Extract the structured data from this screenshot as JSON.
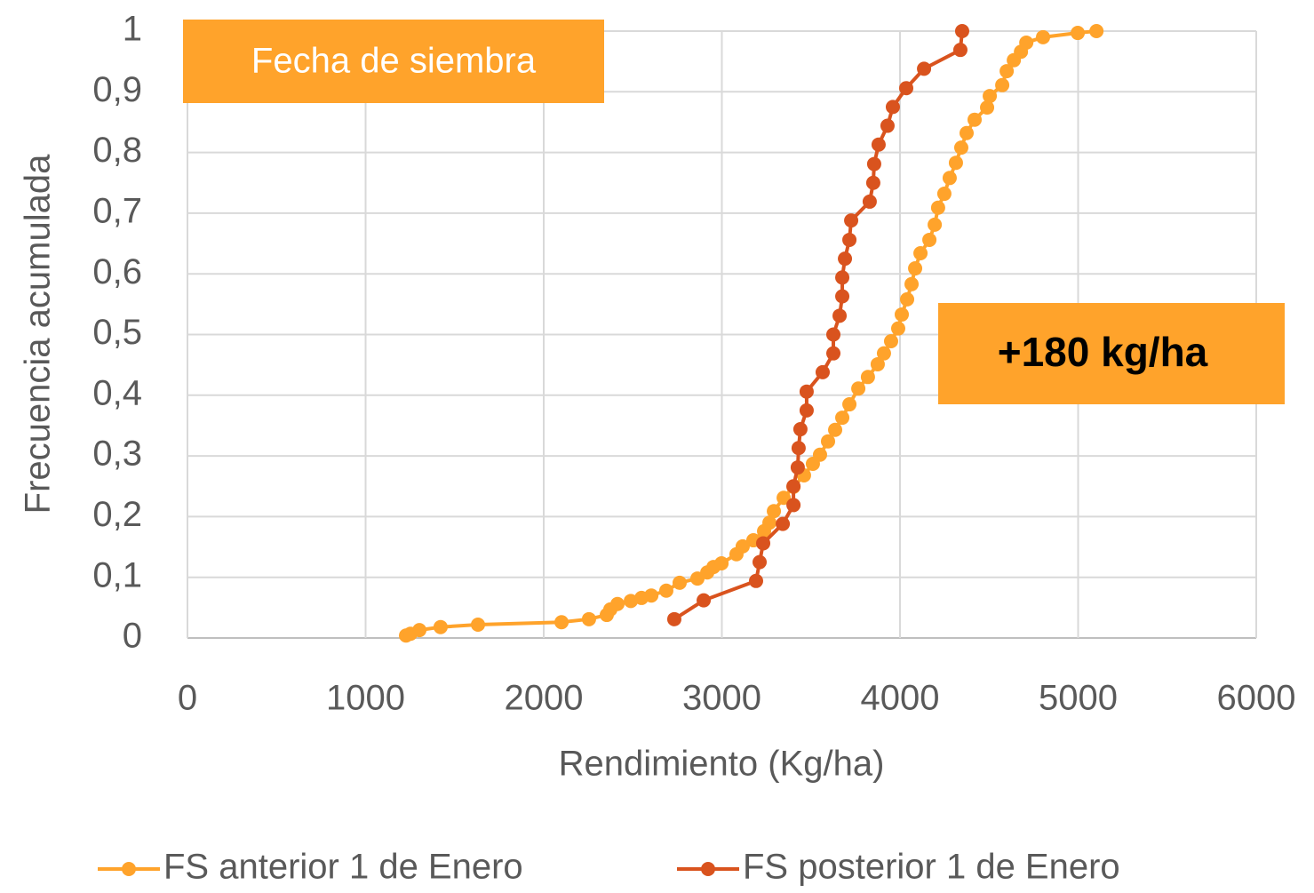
{
  "chart_data": {
    "type": "line",
    "x_label": "Rendimiento (Kg/ha)",
    "y_label": "Frecuencia acumulada",
    "xlim": [
      0,
      6000
    ],
    "xticks": [
      0,
      1000,
      2000,
      3000,
      4000,
      5000,
      6000
    ],
    "ylim": [
      0,
      1
    ],
    "yticks": [
      0,
      {
        "value": 0.1,
        "label": "0,1"
      },
      {
        "value": 0.2,
        "label": "0,2"
      },
      {
        "value": 0.3,
        "label": "0,3"
      },
      {
        "value": 0.4,
        "label": "0,4"
      },
      {
        "value": 0.5,
        "label": "0,5"
      },
      {
        "value": 0.6,
        "label": "0,6"
      },
      {
        "value": 0.7,
        "label": "0,7"
      },
      {
        "value": 0.8,
        "label": "0,8"
      },
      {
        "value": 0.9,
        "label": "0,9"
      },
      1
    ],
    "grid": true,
    "legend": "bottom",
    "annotations": [
      {
        "text": "Fecha de siembra",
        "color": "#FFA32B",
        "text_color": "#ffffff"
      },
      {
        "text": "+180 kg/ha",
        "color": "#FFA32B",
        "text_color": "#000000"
      }
    ],
    "series": [
      {
        "name": "FS anterior 1 de Enero",
        "color": "#FFA32B",
        "x": [
          1227,
          1252,
          1302,
          1421,
          1631,
          2100,
          2254,
          2354,
          2374,
          2414,
          2489,
          2549,
          2604,
          2688,
          2763,
          2863,
          2918,
          2953,
          2998,
          3082,
          3117,
          3177,
          3237,
          3267,
          3292,
          3347,
          3402,
          3461,
          3511,
          3551,
          3596,
          3636,
          3676,
          3716,
          3766,
          3820,
          3875,
          3910,
          3950,
          3990,
          4010,
          4040,
          4065,
          4085,
          4115,
          4165,
          4195,
          4214,
          4249,
          4279,
          4314,
          4344,
          4374,
          4419,
          4489,
          4504,
          4574,
          4599,
          4639,
          4679,
          4709,
          4803,
          4998,
          5103
        ],
        "values": [
          0.004,
          0.007,
          0.013,
          0.018,
          0.022,
          0.026,
          0.031,
          0.038,
          0.047,
          0.056,
          0.061,
          0.066,
          0.07,
          0.078,
          0.091,
          0.098,
          0.108,
          0.117,
          0.123,
          0.138,
          0.151,
          0.161,
          0.176,
          0.19,
          0.209,
          0.231,
          0.249,
          0.268,
          0.287,
          0.302,
          0.324,
          0.343,
          0.363,
          0.385,
          0.411,
          0.43,
          0.451,
          0.469,
          0.489,
          0.51,
          0.533,
          0.558,
          0.583,
          0.609,
          0.634,
          0.656,
          0.681,
          0.709,
          0.732,
          0.758,
          0.783,
          0.808,
          0.832,
          0.854,
          0.874,
          0.893,
          0.911,
          0.934,
          0.952,
          0.966,
          0.981,
          0.99,
          0.997,
          1.0
        ]
      },
      {
        "name": "FS posterior 1 de Enero",
        "color": "#D9531E",
        "x": [
          2733,
          2898,
          3192,
          3212,
          3232,
          3342,
          3402,
          3402,
          3426,
          3431,
          3441,
          3476,
          3476,
          3566,
          3626,
          3626,
          3661,
          3676,
          3676,
          3691,
          3716,
          3726,
          3830,
          3850,
          3855,
          3880,
          3930,
          3960,
          4035,
          4135,
          4339,
          4349
        ],
        "values": [
          0.031,
          0.062,
          0.094,
          0.125,
          0.156,
          0.188,
          0.219,
          0.25,
          0.281,
          0.313,
          0.344,
          0.375,
          0.406,
          0.438,
          0.469,
          0.5,
          0.531,
          0.563,
          0.594,
          0.625,
          0.656,
          0.688,
          0.719,
          0.75,
          0.781,
          0.813,
          0.844,
          0.875,
          0.906,
          0.938,
          0.969,
          1.0
        ]
      }
    ]
  }
}
